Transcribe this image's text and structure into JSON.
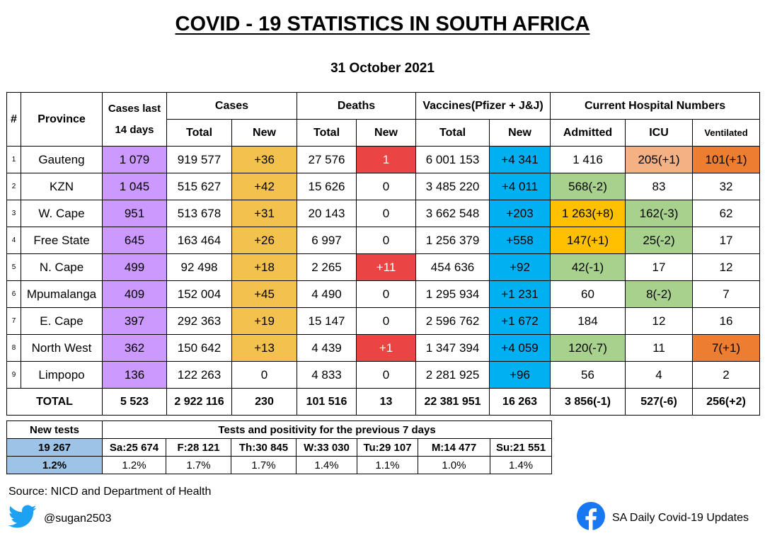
{
  "title": "COVID - 19 STATISTICS IN SOUTH AFRICA",
  "date": "31 October 2021",
  "headers": {
    "idx": "#",
    "province": "Province",
    "cases14": "Cases last 14 days",
    "cases": "Cases",
    "deaths": "Deaths",
    "vaccines": "Vaccines(Pfizer + J&J)",
    "hospital": "Current Hospital Numbers",
    "total": "Total",
    "new": "New",
    "admitted": "Admitted",
    "icu": "ICU",
    "ventilated": "Ventilated"
  },
  "rows": [
    {
      "idx": "1",
      "province": "Gauteng",
      "cases14": "1 079",
      "cases_total": "919 577",
      "cases_new": "+36",
      "deaths_total": "27 576",
      "deaths_new": "1",
      "vacc_total": "6 001 153",
      "vacc_new": "+4 341",
      "admitted": "1 416",
      "icu": "205(+1)",
      "ventilated": "101(+1)"
    },
    {
      "idx": "2",
      "province": "KZN",
      "cases14": "1 045",
      "cases_total": "515 627",
      "cases_new": "+42",
      "deaths_total": "15 626",
      "deaths_new": "0",
      "vacc_total": "3 485 220",
      "vacc_new": "+4 011",
      "admitted": "568(-2)",
      "icu": "83",
      "ventilated": "32"
    },
    {
      "idx": "3",
      "province": "W. Cape",
      "cases14": "951",
      "cases_total": "513 678",
      "cases_new": "+31",
      "deaths_total": "20 143",
      "deaths_new": "0",
      "vacc_total": "3 662 548",
      "vacc_new": "+203",
      "admitted": "1 263(+8)",
      "icu": "162(-3)",
      "ventilated": "62"
    },
    {
      "idx": "4",
      "province": "Free State",
      "cases14": "645",
      "cases_total": "163 464",
      "cases_new": "+26",
      "deaths_total": "6 997",
      "deaths_new": "0",
      "vacc_total": "1 256 379",
      "vacc_new": "+558",
      "admitted": "147(+1)",
      "icu": "25(-2)",
      "ventilated": "17"
    },
    {
      "idx": "5",
      "province": "N. Cape",
      "cases14": "499",
      "cases_total": "92 498",
      "cases_new": "+18",
      "deaths_total": "2 265",
      "deaths_new": "+11",
      "vacc_total": "454 636",
      "vacc_new": "+92",
      "admitted": "42(-1)",
      "icu": "17",
      "ventilated": "12"
    },
    {
      "idx": "6",
      "province": "Mpumalanga",
      "cases14": "409",
      "cases_total": "152 004",
      "cases_new": "+45",
      "deaths_total": "4 490",
      "deaths_new": "0",
      "vacc_total": "1 295 934",
      "vacc_new": "+1 231",
      "admitted": "60",
      "icu": "8(-2)",
      "ventilated": "7"
    },
    {
      "idx": "7",
      "province": "E. Cape",
      "cases14": "397",
      "cases_total": "292 363",
      "cases_new": "+19",
      "deaths_total": "15 147",
      "deaths_new": "0",
      "vacc_total": "2 596 762",
      "vacc_new": "+1 672",
      "admitted": "184",
      "icu": "12",
      "ventilated": "16"
    },
    {
      "idx": "8",
      "province": "North West",
      "cases14": "362",
      "cases_total": "150 642",
      "cases_new": "+13",
      "deaths_total": "4 439",
      "deaths_new": "+1",
      "vacc_total": "1 347 394",
      "vacc_new": "+4 059",
      "admitted": "120(-7)",
      "icu": "11",
      "ventilated": "7(+1)"
    },
    {
      "idx": "9",
      "province": "Limpopo",
      "cases14": "136",
      "cases_total": "122 263",
      "cases_new": "0",
      "deaths_total": "4 833",
      "deaths_new": "0",
      "vacc_total": "2 281 925",
      "vacc_new": "+96",
      "admitted": "56",
      "icu": "4",
      "ventilated": "2"
    }
  ],
  "total": {
    "label": "TOTAL",
    "cases14": "5 523",
    "cases_total": "2 922 116",
    "cases_new": "230",
    "deaths_total": "101 516",
    "deaths_new": "13",
    "vacc_total": "22 381 951",
    "vacc_new": "16 263",
    "admitted": "3 856(-1)",
    "icu": "527(-6)",
    "ventilated": "256(+2)"
  },
  "tests": {
    "new_tests_label": "New tests",
    "header": "Tests and positivity for the previous 7 days",
    "new_tests_value": "19 267",
    "positivity": "1.2%",
    "days": [
      {
        "label": "Sa:25 674",
        "pct": "1.2%"
      },
      {
        "label": "F:28 121",
        "pct": "1.7%"
      },
      {
        "label": "Th:30 845",
        "pct": "1.7%"
      },
      {
        "label": "W:33 030",
        "pct": "1.4%"
      },
      {
        "label": "Tu:29 107",
        "pct": "1.1%"
      },
      {
        "label": "M:14 477",
        "pct": "1.0%"
      },
      {
        "label": "Su:21 551",
        "pct": "1.4%"
      }
    ]
  },
  "source": "Source: NICD and Department of Health",
  "twitter_handle": "@sugan2503",
  "facebook_page": "SA Daily Covid-19 Updates",
  "colors": {
    "cases14": "#cc99ff",
    "cases_new": "#f2c14e",
    "deaths_new_alert": "#ea4444",
    "vacc_new": "#00b0f0",
    "decrease": "#a9d18e",
    "increase": "#ffc000",
    "icu_increase": "#f4b183",
    "vent_increase": "#ed7d31",
    "new_tests": "#9dc3e6"
  }
}
